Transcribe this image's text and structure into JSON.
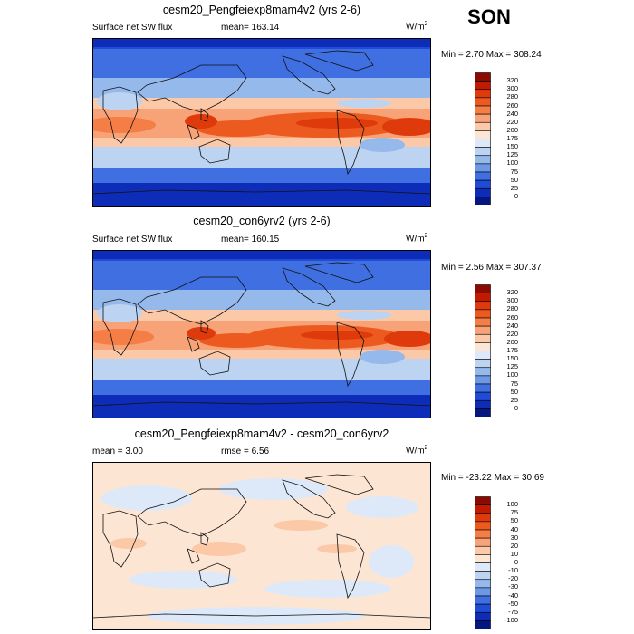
{
  "season": "SON",
  "units": {
    "base": "W/m",
    "exp": "2"
  },
  "panels": [
    {
      "title": "cesm20_Pengfeiexp8mam4v2 (yrs 2-6)",
      "left_label": "Surface net SW flux",
      "stat_label": "mean=",
      "stat_value": "163.14",
      "min_label": "Min =",
      "min_value": "2.70",
      "max_label": "Max =",
      "max_value": "308.24"
    },
    {
      "title": "cesm20_con6yrv2 (yrs 2-6)",
      "left_label": "Surface net SW flux",
      "stat_label": "mean=",
      "stat_value": "160.15",
      "min_label": "Min =",
      "min_value": "2.56",
      "max_label": "Max =",
      "max_value": "307.37"
    },
    {
      "title": "cesm20_Pengfeiexp8mam4v2 - cesm20_con6yrv2",
      "left_label": "mean =",
      "left_value": "3.00",
      "stat_label": "rmse =",
      "stat_value": "6.56",
      "min_label": "Min =",
      "min_value": "-23.22",
      "max_label": "Max =",
      "max_value": "30.69"
    }
  ],
  "colorbars": {
    "flux": {
      "labels": [
        "320",
        "300",
        "280",
        "260",
        "240",
        "220",
        "200",
        "175",
        "150",
        "125",
        "100",
        "75",
        "50",
        "25",
        "0"
      ],
      "colors": [
        "#8b0a02",
        "#c21a00",
        "#df3a0b",
        "#ec5a1f",
        "#f47e45",
        "#f8a277",
        "#fbc8a8",
        "#fde5d3",
        "#dde9f8",
        "#bcd3f1",
        "#96b9ec",
        "#6c98e5",
        "#3f6fe0",
        "#1f4bd6",
        "#0d2db8",
        "#05167f"
      ]
    },
    "diff": {
      "labels": [
        "100",
        "75",
        "50",
        "40",
        "30",
        "20",
        "10",
        "0",
        "-10",
        "-20",
        "-30",
        "-40",
        "-50",
        "-75",
        "-100"
      ],
      "colors": [
        "#8b0a02",
        "#c21a00",
        "#df3a0b",
        "#ec5a1f",
        "#f47e45",
        "#f8a277",
        "#fbc8a8",
        "#fde5d3",
        "#dde9f8",
        "#bcd3f1",
        "#96b9ec",
        "#6c98e5",
        "#3f6fe0",
        "#1f4bd6",
        "#0d2db8",
        "#05167f"
      ]
    }
  }
}
